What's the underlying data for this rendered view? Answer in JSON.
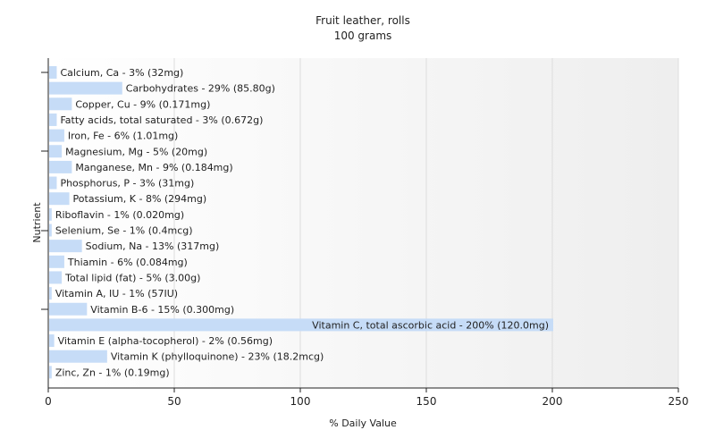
{
  "chart_data": {
    "type": "bar",
    "orientation": "horizontal",
    "title": "Fruit leather, rolls",
    "subtitle": "100 grams",
    "xlabel": "% Daily Value",
    "ylabel": "Nutrient",
    "xlim": [
      0,
      250
    ],
    "x_ticks": [
      0,
      50,
      100,
      150,
      200,
      250
    ],
    "grid": true,
    "legend": "none",
    "bar_color": "#c6dcf7",
    "categories": [
      "Calcium, Ca",
      "Carbohydrates",
      "Copper, Cu",
      "Fatty acids, total saturated",
      "Iron, Fe",
      "Magnesium, Mg",
      "Manganese, Mn",
      "Phosphorus, P",
      "Potassium, K",
      "Riboflavin",
      "Selenium, Se",
      "Sodium, Na",
      "Thiamin",
      "Total lipid (fat)",
      "Vitamin A, IU",
      "Vitamin B-6",
      "Vitamin C, total ascorbic acid",
      "Vitamin E (alpha-tocopherol)",
      "Vitamin K (phylloquinone)",
      "Zinc, Zn"
    ],
    "values": [
      3,
      29,
      9,
      3,
      6,
      5,
      9,
      3,
      8,
      1,
      1,
      13,
      6,
      5,
      1,
      15,
      200,
      2,
      23,
      1
    ],
    "data_labels": [
      "Calcium, Ca - 3% (32mg)",
      "Carbohydrates - 29% (85.80g)",
      "Copper, Cu - 9% (0.171mg)",
      "Fatty acids, total saturated - 3% (0.672g)",
      "Iron, Fe - 6% (1.01mg)",
      "Magnesium, Mg - 5% (20mg)",
      "Manganese, Mn - 9% (0.184mg)",
      "Phosphorus, P - 3% (31mg)",
      "Potassium, K - 8% (294mg)",
      "Riboflavin - 1% (0.020mg)",
      "Selenium, Se - 1% (0.4mcg)",
      "Sodium, Na - 13% (317mg)",
      "Thiamin - 6% (0.084mg)",
      "Total lipid (fat) - 5% (3.00g)",
      "Vitamin A, IU - 1% (57IU)",
      "Vitamin B-6 - 15% (0.300mg)",
      "Vitamin C, total ascorbic acid - 200% (120.0mg)",
      "Vitamin E (alpha-tocopherol) - 2% (0.56mg)",
      "Vitamin K (phylloquinone) - 23% (18.2mcg)",
      "Zinc, Zn - 1% (0.19mg)"
    ]
  }
}
